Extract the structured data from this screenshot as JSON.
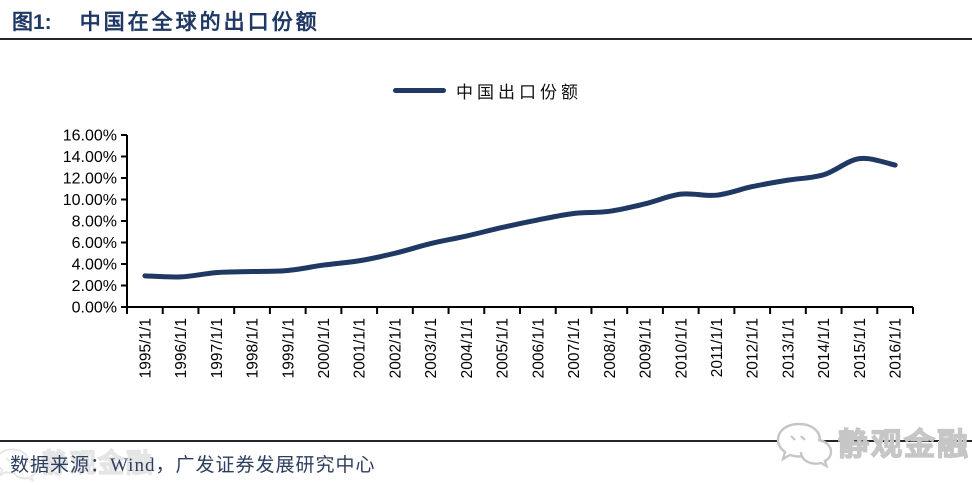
{
  "figure": {
    "label": "图1:",
    "title": "中国在全球的出口份额"
  },
  "legend": {
    "series_label": "中国出口份额"
  },
  "footer": {
    "source_text": "数据来源：Wind，广发证券发展研究中心"
  },
  "watermark": {
    "text": "静观金融",
    "icon": "chat-bubbles-icon"
  },
  "colors": {
    "line": "#1f3864",
    "title": "#1f3864",
    "axis": "#000000",
    "rule": "#23232d",
    "watermark": "#c6c6c6"
  },
  "chart_data": {
    "type": "line",
    "title": "中国在全球的出口份额",
    "x": [
      "1995/1/1",
      "1996/1/1",
      "1997/1/1",
      "1998/1/1",
      "1999/1/1",
      "2000/1/1",
      "2001/1/1",
      "2002/1/1",
      "2003/1/1",
      "2004/1/1",
      "2005/1/1",
      "2006/1/1",
      "2007/1/1",
      "2008/1/1",
      "2009/1/1",
      "2010/1/1",
      "2011/1/1",
      "2012/1/1",
      "2013/1/1",
      "2014/1/1",
      "2015/1/1",
      "2016/1/1"
    ],
    "series": [
      {
        "name": "中国出口份额",
        "values": [
          2.9,
          2.8,
          3.2,
          3.3,
          3.4,
          3.9,
          4.3,
          5.0,
          5.9,
          6.6,
          7.4,
          8.1,
          8.7,
          8.9,
          9.6,
          10.5,
          10.4,
          11.2,
          11.8,
          12.3,
          13.8,
          13.2
        ]
      }
    ],
    "ylabel": "",
    "xlabel": "",
    "ylim": [
      0,
      16
    ],
    "ytick_step": 2,
    "yticks": [
      "16.00%",
      "14.00%",
      "12.00%",
      "10.00%",
      "8.00%",
      "6.00%",
      "4.00%",
      "2.00%",
      "0.00%"
    ],
    "y_unit": "percent",
    "grid": false,
    "legend_position": "top-center",
    "x_label_rotation": -90
  }
}
